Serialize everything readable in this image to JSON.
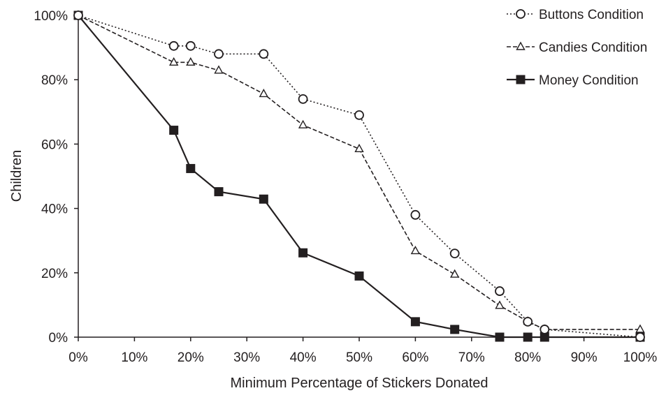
{
  "chart_data": {
    "type": "line",
    "title": "",
    "xlabel": "Minimum Percentage of Stickers Donated",
    "ylabel": "Children",
    "xlim": [
      0,
      100
    ],
    "ylim": [
      0,
      100
    ],
    "x_ticks": [
      0,
      10,
      20,
      30,
      40,
      50,
      60,
      70,
      80,
      90,
      100
    ],
    "y_ticks": [
      0,
      20,
      40,
      60,
      80,
      100
    ],
    "x_tick_labels": [
      "0%",
      "10%",
      "20%",
      "30%",
      "40%",
      "50%",
      "60%",
      "70%",
      "80%",
      "90%",
      "100%"
    ],
    "y_tick_labels": [
      "0%",
      "20%",
      "40%",
      "60%",
      "80%",
      "100%"
    ],
    "grid": false,
    "legend_position": "top-right",
    "series": [
      {
        "name": "Buttons Condition",
        "marker": "open-circle",
        "line_style": "dotted",
        "color": "#231f20",
        "x": [
          0,
          17,
          20,
          25,
          33,
          40,
          50,
          60,
          67,
          75,
          80,
          83,
          100
        ],
        "y": [
          100,
          90.5,
          90.5,
          88,
          88,
          74,
          69,
          38,
          26,
          14.3,
          4.8,
          2.4,
          0
        ]
      },
      {
        "name": "Candies Condition",
        "marker": "open-triangle",
        "line_style": "dashed",
        "color": "#231f20",
        "x": [
          0,
          17,
          20,
          25,
          33,
          40,
          50,
          60,
          67,
          75,
          80,
          83,
          100
        ],
        "y": [
          100,
          85.4,
          85.4,
          82.9,
          75.6,
          65.9,
          58.5,
          26.8,
          19.5,
          9.8,
          4.9,
          2.4,
          2.4
        ]
      },
      {
        "name": "Money Condition",
        "marker": "filled-square",
        "line_style": "solid",
        "color": "#231f20",
        "x": [
          0,
          17,
          20,
          25,
          33,
          40,
          50,
          60,
          67,
          75,
          80,
          83,
          100
        ],
        "y": [
          100,
          64.3,
          52.4,
          45.2,
          42.9,
          26.2,
          19.0,
          4.8,
          2.4,
          0,
          0,
          0,
          0
        ]
      }
    ]
  }
}
